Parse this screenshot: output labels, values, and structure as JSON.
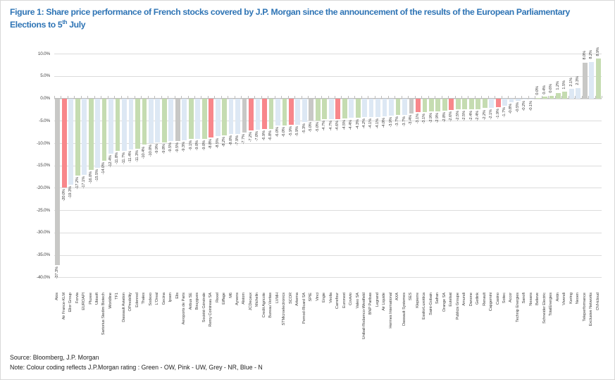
{
  "title": {
    "line1": "Figure 1: Share price performance of French stocks covered by J.P. Morgan since the announcement of the results of the European Parliamentary",
    "line2_prefix": "Elections to 5",
    "line2_sup": "th",
    "line2_suffix": " July"
  },
  "footer": {
    "source": "Source: Bloomberg, J.P. Morgan",
    "note": "Note: Colour coding reflects J.P.Morgan rating : Green - OW, Pink - UW, Grey - NR, Blue - N"
  },
  "chart_data": {
    "type": "bar",
    "title": "Share price performance of French stocks covered by J.P. Morgan since the announcement of the results of the European Parliamentary Elections to 5th July",
    "xlabel": "",
    "ylabel": "",
    "ylim": [
      -40,
      10
    ],
    "ytick_interval": 5,
    "ytick_labels": [
      "10.0%",
      "5.0%",
      "0.0%",
      "-5.0%",
      "-10.0%",
      "-15.0%",
      "-20.0%",
      "-25.0%",
      "-30.0%",
      "-35.0%",
      "-40.0%"
    ],
    "grid": true,
    "value_labels": "rotated, outside bar end, one decimal + %",
    "category_labels": "rotated 90deg below axis",
    "rating_legend": {
      "Green": "OW",
      "Pink": "UW",
      "Grey": "NR",
      "Blue": "N"
    },
    "rating_colors": {
      "OW": "#c5dcb1",
      "UW": "#f8878b",
      "NR": "#c8c8c6",
      "N": "#dde8f4"
    },
    "accent_colors": {
      "title_blue": "#2e74b5",
      "gridline": "#dcdcdc",
      "axis": "#bdbdbd"
    },
    "series": [
      {
        "name": "Atos",
        "value": -37.3,
        "rating": "NR"
      },
      {
        "name": "Air France-KLM",
        "value": -20.0,
        "rating": "UW"
      },
      {
        "name": "Elior Group",
        "value": -19.3,
        "rating": "N"
      },
      {
        "name": "Forvia",
        "value": -17.2,
        "rating": "OW"
      },
      {
        "name": "EUROAPI",
        "value": -17.1,
        "rating": "N"
      },
      {
        "name": "Pluxee",
        "value": -16.0,
        "rating": "OW"
      },
      {
        "name": "Ubisoft",
        "value": -15.5,
        "rating": "N"
      },
      {
        "name": "Sartorius Stedim Biotech",
        "value": -14.0,
        "rating": "OW"
      },
      {
        "name": "Worldline",
        "value": -12.4,
        "rating": "N"
      },
      {
        "name": "TF1",
        "value": -11.8,
        "rating": "OW"
      },
      {
        "name": "Dassault Aviation",
        "value": -11.7,
        "rating": "N"
      },
      {
        "name": "OPmobility",
        "value": -11.4,
        "rating": "N"
      },
      {
        "name": "Edenred",
        "value": -11.3,
        "rating": "OW"
      },
      {
        "name": "Thales",
        "value": -10.4,
        "rating": "OW"
      },
      {
        "name": "Sodexo",
        "value": -10.0,
        "rating": "N"
      },
      {
        "name": "L'Oreal",
        "value": -9.9,
        "rating": "N"
      },
      {
        "name": "Gecina",
        "value": -9.8,
        "rating": "OW"
      },
      {
        "name": "Ipsen",
        "value": -9.5,
        "rating": "N"
      },
      {
        "name": "Elis",
        "value": -9.5,
        "rating": "NR"
      },
      {
        "name": "Aeroports de Paris",
        "value": -9.3,
        "rating": "N"
      },
      {
        "name": "Airbus SE",
        "value": -9.1,
        "rating": "OW"
      },
      {
        "name": "Bouygues",
        "value": -9.0,
        "rating": "N"
      },
      {
        "name": "Société Générale",
        "value": -9.0,
        "rating": "OW"
      },
      {
        "name": "Remy Cointreau SA",
        "value": -8.8,
        "rating": "UW"
      },
      {
        "name": "Rexel",
        "value": -8.5,
        "rating": "N"
      },
      {
        "name": "Eiffage",
        "value": -8.2,
        "rating": "OW"
      },
      {
        "name": "M6",
        "value": -8.0,
        "rating": "N"
      },
      {
        "name": "Ayvens",
        "value": -7.9,
        "rating": "N"
      },
      {
        "name": "Alstom",
        "value": -7.7,
        "rating": "NR"
      },
      {
        "name": "JCDecaux",
        "value": -7.2,
        "rating": "UW"
      },
      {
        "name": "Michelin",
        "value": -7.0,
        "rating": "N"
      },
      {
        "name": "Credit Agricole",
        "value": -6.9,
        "rating": "UW"
      },
      {
        "name": "Bureau Veritas",
        "value": -6.8,
        "rating": "OW"
      },
      {
        "name": "LVMH",
        "value": -6.0,
        "rating": "N"
      },
      {
        "name": "STMicroelectronics",
        "value": -6.0,
        "rating": "OW"
      },
      {
        "name": "SCOR",
        "value": -5.9,
        "rating": "UW"
      },
      {
        "name": "Arkema",
        "value": -5.9,
        "rating": "N"
      },
      {
        "name": "Pernod-Ricard SA",
        "value": -5.3,
        "rating": "N"
      },
      {
        "name": "SPIE",
        "value": -5.0,
        "rating": "NR"
      },
      {
        "name": "Vinci",
        "value": -5.0,
        "rating": "OW"
      },
      {
        "name": "Engie",
        "value": -4.7,
        "rating": "OW"
      },
      {
        "name": "Veolia",
        "value": -4.7,
        "rating": "N"
      },
      {
        "name": "Carrefour",
        "value": -4.6,
        "rating": "UW"
      },
      {
        "name": "Euronext",
        "value": -4.5,
        "rating": "OW"
      },
      {
        "name": "Covivio",
        "value": -4.4,
        "rating": "N"
      },
      {
        "name": "Valeo SA",
        "value": -4.3,
        "rating": "OW"
      },
      {
        "name": "Unibail-Rodamco-Westfield",
        "value": -4.2,
        "rating": "N"
      },
      {
        "name": "BNP Paribas",
        "value": -4.1,
        "rating": "N"
      },
      {
        "name": "Legrand",
        "value": -4.1,
        "rating": "N"
      },
      {
        "name": "Air Liquide",
        "value": -4.0,
        "rating": "N"
      },
      {
        "name": "Hermes International",
        "value": -3.9,
        "rating": "N"
      },
      {
        "name": "AXA",
        "value": -3.7,
        "rating": "OW"
      },
      {
        "name": "Dassault Systemes",
        "value": -3.7,
        "rating": "N"
      },
      {
        "name": "SES",
        "value": -3.4,
        "rating": "NR"
      },
      {
        "name": "Klepierre",
        "value": -3.1,
        "rating": "UW"
      },
      {
        "name": "EssilorLuxottica",
        "value": -3.1,
        "rating": "OW"
      },
      {
        "name": "Saint-Gobain",
        "value": -2.9,
        "rating": "OW"
      },
      {
        "name": "Safran",
        "value": -2.9,
        "rating": "OW"
      },
      {
        "name": "Orange SA",
        "value": -2.8,
        "rating": "OW"
      },
      {
        "name": "Eutelsat",
        "value": -2.6,
        "rating": "UW"
      },
      {
        "name": "Publicis Groupe",
        "value": -2.5,
        "rating": "OW"
      },
      {
        "name": "Amundi",
        "value": -2.5,
        "rating": "OW"
      },
      {
        "name": "Danone",
        "value": -2.4,
        "rating": "OW"
      },
      {
        "name": "Getlink",
        "value": -2.4,
        "rating": "OW"
      },
      {
        "name": "Renault",
        "value": -2.2,
        "rating": "OW"
      },
      {
        "name": "Capgemini",
        "value": -2.1,
        "rating": "N"
      },
      {
        "name": "Casino",
        "value": -1.9,
        "rating": "UW"
      },
      {
        "name": "Soitec",
        "value": -1.7,
        "rating": "N"
      },
      {
        "name": "Accor",
        "value": -0.8,
        "rating": "N"
      },
      {
        "name": "Technip Energies",
        "value": -0.5,
        "rating": "N"
      },
      {
        "name": "Sanofi",
        "value": -0.2,
        "rating": "N"
      },
      {
        "name": "Nexans",
        "value": -0.1,
        "rating": "N"
      },
      {
        "name": "Believe",
        "value": 0.0,
        "rating": "OW"
      },
      {
        "name": "Schneider Electric",
        "value": 0.4,
        "rating": "OW"
      },
      {
        "name": "TotalEnergies",
        "value": 0.6,
        "rating": "OW"
      },
      {
        "name": "Antin",
        "value": 1.2,
        "rating": "OW"
      },
      {
        "name": "Vivendi",
        "value": 1.5,
        "rating": "OW"
      },
      {
        "name": "Kering",
        "value": 2.1,
        "rating": "N"
      },
      {
        "name": "Neoen",
        "value": 2.3,
        "rating": "N"
      },
      {
        "name": "Teleperformance",
        "value": 8.0,
        "rating": "NR"
      },
      {
        "name": "Exclusive Networks",
        "value": 8.2,
        "rating": "N"
      },
      {
        "name": "OVHcloud",
        "value": 8.9,
        "rating": "OW"
      }
    ]
  }
}
